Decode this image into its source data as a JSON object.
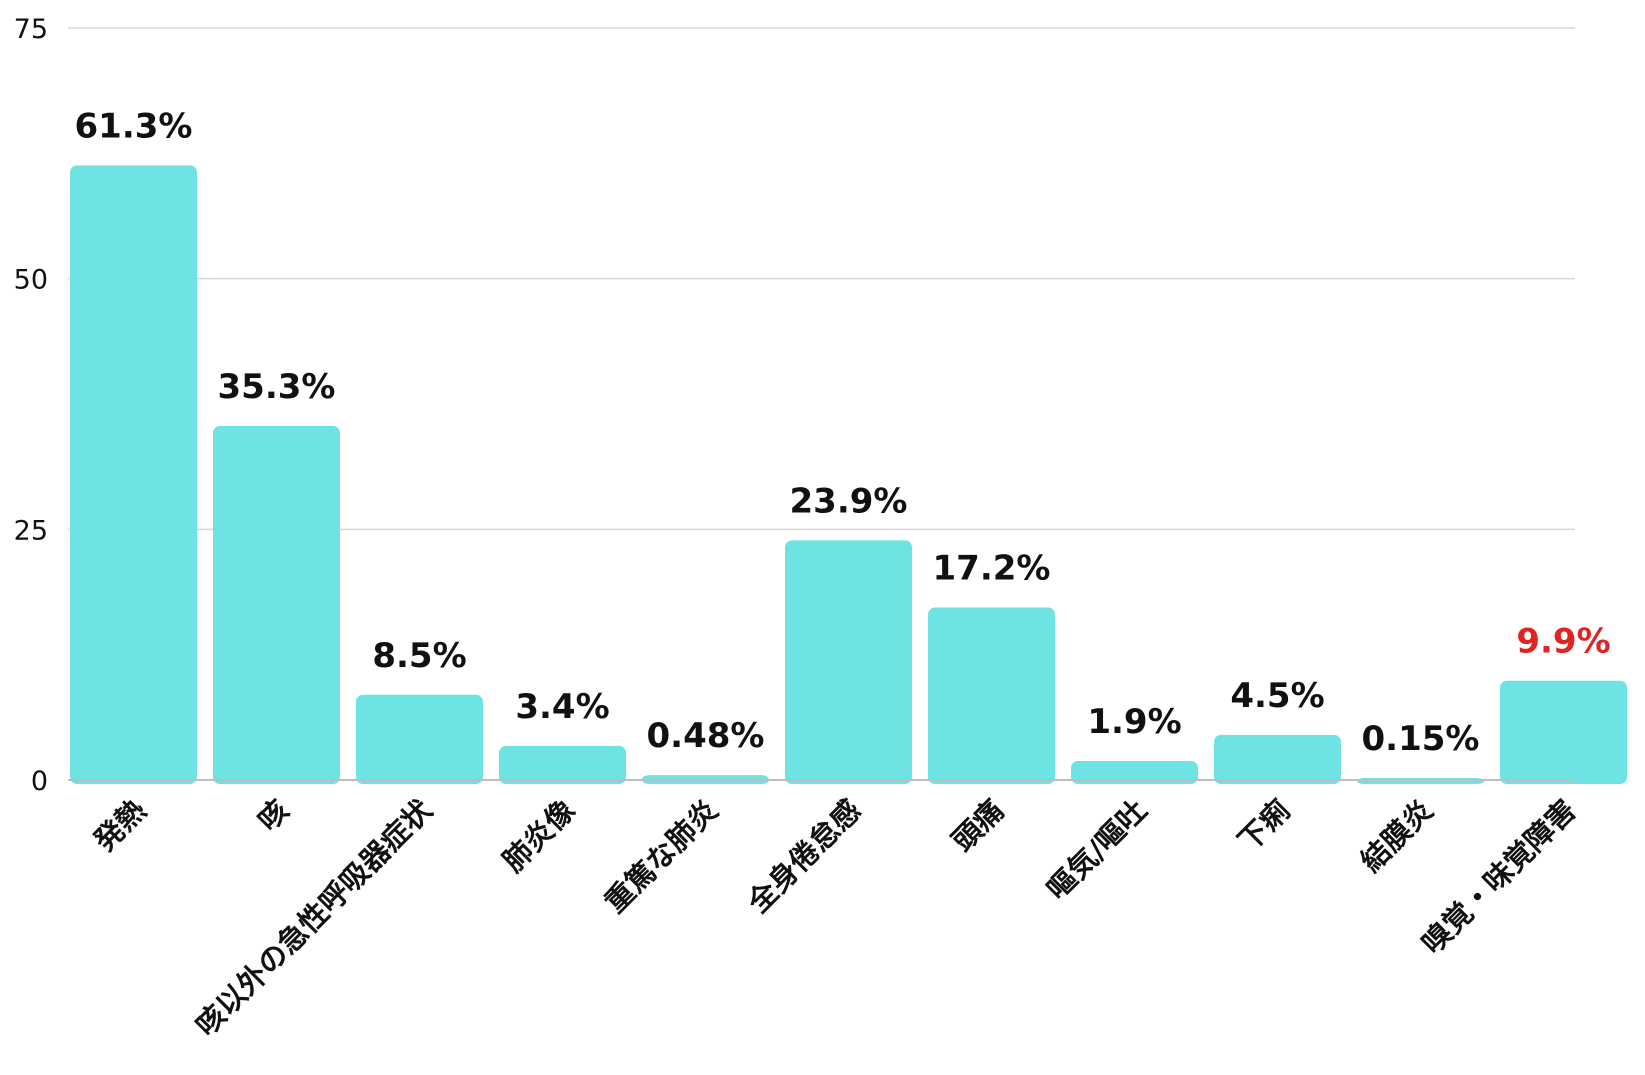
{
  "colors": {
    "bar": "#6ee3e4",
    "gridline": "#d9d9d9",
    "baseline": "#bdbdbd",
    "text": "#111111",
    "highlight_label": "#e02424"
  },
  "chart_data": {
    "type": "bar",
    "title": "",
    "xlabel": "",
    "ylabel": "",
    "ylim": [
      0,
      75
    ],
    "yticks": [
      0,
      25,
      50,
      75
    ],
    "grid": true,
    "legend": "none",
    "categories": [
      "発熱",
      "咳",
      "咳以外の急性呼吸器症状",
      "肺炎像",
      "重篤な肺炎",
      "全身倦怠感",
      "頭痛",
      "嘔気/嘔吐",
      "下痢",
      "結膜炎",
      "嗅覚・味覚障害"
    ],
    "values": [
      61.3,
      35.3,
      8.5,
      3.4,
      0.48,
      23.9,
      17.2,
      1.9,
      4.5,
      0.15,
      9.9
    ],
    "value_labels": [
      "61.3%",
      "35.3%",
      "8.5%",
      "3.4%",
      "0.48%",
      "23.9%",
      "17.2%",
      "1.9%",
      "4.5%",
      "0.15%",
      "9.9%"
    ],
    "highlight_index": 10
  }
}
